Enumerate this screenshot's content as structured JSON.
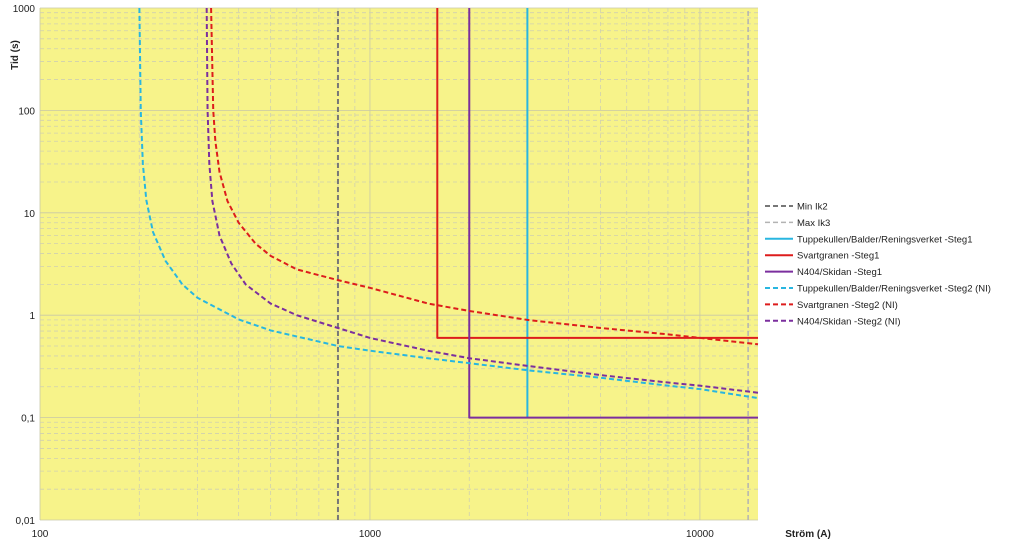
{
  "chart_data": {
    "type": "line",
    "title": "",
    "xlabel": "Ström (A)",
    "ylabel": "Tid (s)",
    "x_scale": "log",
    "y_scale": "log",
    "xlim": [
      100,
      15000
    ],
    "ylim": [
      0.01,
      1000
    ],
    "grid": true,
    "legend_position": "right",
    "plot_background": "#f7f38a",
    "x_ticks": [
      {
        "value": 100,
        "label": "100"
      },
      {
        "value": 1000,
        "label": "1000"
      },
      {
        "value": 10000,
        "label": "10000"
      }
    ],
    "y_ticks": [
      {
        "value": 0.01,
        "label": "0,01"
      },
      {
        "value": 0.1,
        "label": "0,1"
      },
      {
        "value": 1,
        "label": "1"
      },
      {
        "value": 10,
        "label": "10"
      },
      {
        "value": 100,
        "label": "100"
      },
      {
        "value": 1000,
        "label": "1000"
      }
    ],
    "series": [
      {
        "name": "Min Ik2",
        "color": "#777777",
        "style": "dashed",
        "width": 2,
        "points": [
          [
            800,
            0.01
          ],
          [
            800,
            1000
          ]
        ]
      },
      {
        "name": "Max Ik3",
        "color": "#b3b3b3",
        "style": "dashed",
        "width": 1.5,
        "points": [
          [
            14000,
            0.01
          ],
          [
            14000,
            1000
          ]
        ]
      },
      {
        "name": "Tuppekullen/Balder/Reningsverket -Steg1",
        "color": "#29b6e0",
        "style": "solid",
        "width": 2,
        "points": [
          [
            3000,
            0.1
          ],
          [
            3000,
            1000
          ]
        ]
      },
      {
        "name": "Svartgranen -Steg1",
        "color": "#dd1c1c",
        "style": "solid",
        "width": 2,
        "points": [
          [
            1600,
            1000
          ],
          [
            1600,
            0.6
          ],
          [
            15000,
            0.6
          ]
        ]
      },
      {
        "name": "N404/Skidan -Steg1",
        "color": "#7b2f9e",
        "style": "solid",
        "width": 2,
        "points": [
          [
            2000,
            1000
          ],
          [
            2000,
            0.1
          ],
          [
            15000,
            0.1
          ]
        ]
      },
      {
        "name": "Tuppekullen/Balder/Reningsverket -Steg2 (NI)",
        "color": "#29b6e0",
        "style": "dashed",
        "width": 2,
        "points": [
          [
            200.1,
            1000
          ],
          [
            202,
            100
          ],
          [
            205,
            30
          ],
          [
            210,
            13.3
          ],
          [
            220,
            6.5
          ],
          [
            240,
            3.4
          ],
          [
            270,
            2.0
          ],
          [
            300,
            1.48
          ],
          [
            400,
            0.91
          ],
          [
            500,
            0.71
          ],
          [
            600,
            0.62
          ],
          [
            800,
            0.5
          ],
          [
            1000,
            0.45
          ],
          [
            1500,
            0.38
          ],
          [
            2000,
            0.34
          ],
          [
            3000,
            0.29
          ],
          [
            5000,
            0.245
          ],
          [
            8000,
            0.205
          ],
          [
            10000,
            0.19
          ],
          [
            15000,
            0.155
          ]
        ]
      },
      {
        "name": "Svartgranen -Steg2 (NI)",
        "color": "#dd1c1c",
        "style": "dashed",
        "width": 2,
        "points": [
          [
            330,
            1000
          ],
          [
            335,
            100
          ],
          [
            340,
            50
          ],
          [
            350,
            25
          ],
          [
            370,
            13
          ],
          [
            400,
            8
          ],
          [
            450,
            5.0
          ],
          [
            500,
            3.8
          ],
          [
            600,
            2.8
          ],
          [
            800,
            2.2
          ],
          [
            1000,
            1.85
          ],
          [
            1500,
            1.3
          ],
          [
            2000,
            1.1
          ],
          [
            3000,
            0.9
          ],
          [
            5000,
            0.75
          ],
          [
            8000,
            0.65
          ],
          [
            10000,
            0.6
          ],
          [
            15000,
            0.52
          ]
        ]
      },
      {
        "name": "N404/Skidan -Steg2 (NI)",
        "color": "#7b2f9e",
        "style": "dashed",
        "width": 2,
        "points": [
          [
            320,
            1000
          ],
          [
            322,
            100
          ],
          [
            326,
            30
          ],
          [
            333,
            13
          ],
          [
            350,
            6.0
          ],
          [
            380,
            3.2
          ],
          [
            420,
            2.0
          ],
          [
            500,
            1.3
          ],
          [
            600,
            1.0
          ],
          [
            800,
            0.75
          ],
          [
            1000,
            0.6
          ],
          [
            1500,
            0.45
          ],
          [
            2000,
            0.38
          ],
          [
            3000,
            0.32
          ],
          [
            5000,
            0.26
          ],
          [
            8000,
            0.22
          ],
          [
            10000,
            0.205
          ],
          [
            15000,
            0.175
          ]
        ]
      }
    ]
  }
}
